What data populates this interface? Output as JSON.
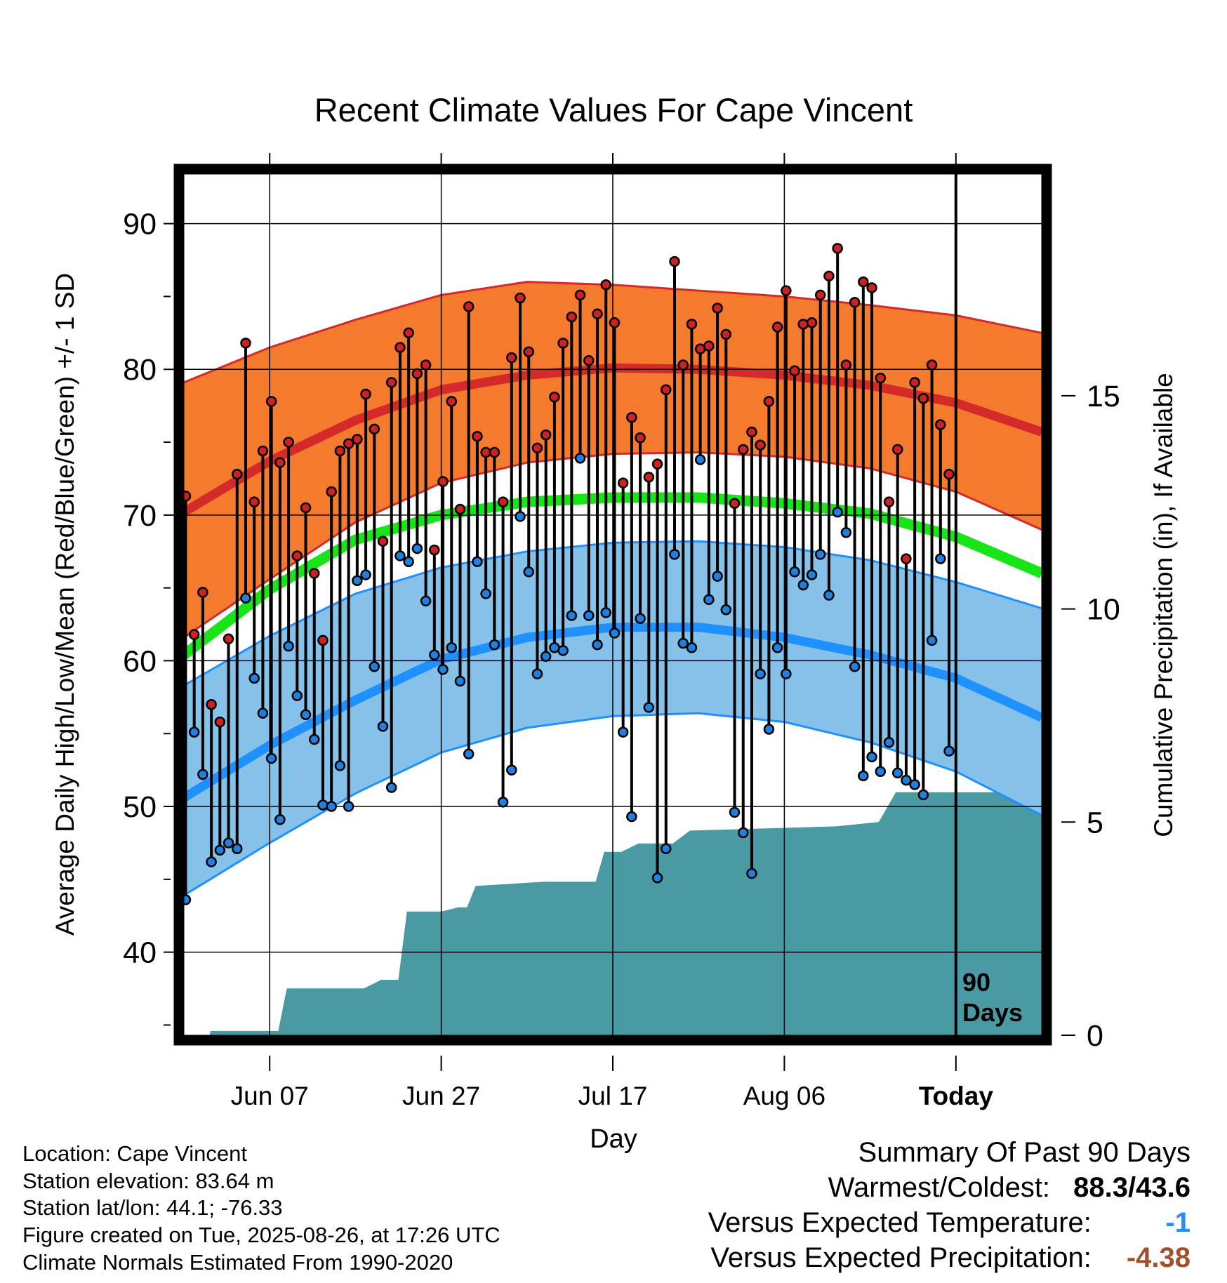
{
  "chart_data": {
    "type": "line",
    "title": "Recent Climate Values For Cape Vincent",
    "xlabel": "Day",
    "ylabel": "Average Daily High/Low/Mean (Red/Blue/Green) +/- 1 SD",
    "y2label": "Cumulative Precipitation (in), If Available",
    "ylim": [
      34.3,
      93.4
    ],
    "y2lim": [
      0,
      20.2
    ],
    "yticks": [
      40,
      50,
      60,
      70,
      80,
      90
    ],
    "y2ticks": [
      0,
      5,
      10,
      15
    ],
    "xticks": [
      {
        "day": 10,
        "label": "Jun 07"
      },
      {
        "day": 30,
        "label": "Jun 27"
      },
      {
        "day": 50,
        "label": "Jul 17"
      },
      {
        "day": 70,
        "label": "Aug 06"
      },
      {
        "day": 90,
        "label": "Today"
      }
    ],
    "grid": true,
    "window_label": "90 Days",
    "highs": [
      71.3,
      61.8,
      64.7,
      57.0,
      55.8,
      61.5,
      72.8,
      81.8,
      70.9,
      74.4,
      77.8,
      73.6,
      75.0,
      67.2,
      70.5,
      66.0,
      61.4,
      71.6,
      74.4,
      74.9,
      75.2,
      78.3,
      75.9,
      68.2,
      79.1,
      81.5,
      82.5,
      79.7,
      80.3,
      67.6,
      72.3,
      77.8,
      70.4,
      84.3,
      75.4,
      74.3,
      74.3,
      70.9,
      80.8,
      84.9,
      81.2,
      74.6,
      75.5,
      78.1,
      81.8,
      83.6,
      85.1,
      80.6,
      83.8,
      85.8,
      83.2,
      72.2,
      76.7,
      75.3,
      72.6,
      73.5,
      78.6,
      87.4,
      80.3,
      83.1,
      81.4,
      81.6,
      84.2,
      82.4,
      70.8,
      74.5,
      75.7,
      74.8,
      77.8,
      82.9,
      85.4,
      79.9,
      83.1,
      83.2,
      85.1,
      86.4,
      88.3,
      80.3,
      84.6,
      86.0,
      85.6,
      79.4,
      70.9,
      74.5,
      67.0,
      79.1,
      78.0,
      80.3,
      76.2,
      72.8
    ],
    "lows": [
      43.6,
      55.1,
      52.2,
      46.2,
      47.0,
      47.5,
      47.1,
      64.3,
      58.8,
      56.4,
      53.3,
      49.1,
      61.0,
      57.6,
      56.3,
      54.6,
      50.1,
      50.0,
      52.8,
      50.0,
      65.5,
      65.9,
      59.6,
      55.5,
      51.3,
      67.2,
      66.8,
      67.7,
      64.1,
      60.4,
      59.4,
      60.9,
      58.6,
      53.6,
      66.8,
      64.6,
      61.1,
      50.3,
      52.5,
      69.9,
      66.1,
      59.1,
      60.3,
      60.9,
      60.7,
      63.1,
      73.9,
      63.1,
      61.1,
      63.3,
      61.9,
      55.1,
      49.3,
      62.9,
      56.8,
      45.1,
      47.1,
      67.3,
      61.2,
      60.9,
      73.8,
      64.2,
      65.8,
      63.5,
      49.6,
      48.2,
      45.4,
      59.1,
      55.3,
      60.9,
      59.1,
      66.1,
      65.2,
      65.9,
      67.3,
      64.5,
      70.2,
      68.8,
      59.6,
      52.1,
      53.4,
      52.4,
      54.4,
      52.3,
      51.8,
      51.5,
      50.8,
      61.4,
      67.0,
      53.8
    ],
    "normals_mean_high": [
      {
        "day": 0,
        "value": 70.2
      },
      {
        "day": 10,
        "value": 73.7
      },
      {
        "day": 20,
        "value": 76.5
      },
      {
        "day": 30,
        "value": 78.6
      },
      {
        "day": 40,
        "value": 79.6
      },
      {
        "day": 50,
        "value": 80.1
      },
      {
        "day": 60,
        "value": 80.0
      },
      {
        "day": 70,
        "value": 79.6
      },
      {
        "day": 80,
        "value": 78.9
      },
      {
        "day": 90,
        "value": 77.7
      },
      {
        "day": 100,
        "value": 75.7
      }
    ],
    "normals_high_upper": [
      {
        "day": 0,
        "value": 79.1
      },
      {
        "day": 10,
        "value": 81.5
      },
      {
        "day": 20,
        "value": 83.4
      },
      {
        "day": 30,
        "value": 85.1
      },
      {
        "day": 40,
        "value": 86.0
      },
      {
        "day": 50,
        "value": 85.8
      },
      {
        "day": 60,
        "value": 85.4
      },
      {
        "day": 70,
        "value": 85.0
      },
      {
        "day": 80,
        "value": 84.4
      },
      {
        "day": 90,
        "value": 83.7
      },
      {
        "day": 100,
        "value": 82.5
      }
    ],
    "normals_high_lower": [
      {
        "day": 0,
        "value": 61.6
      },
      {
        "day": 10,
        "value": 65.6
      },
      {
        "day": 20,
        "value": 69.5
      },
      {
        "day": 30,
        "value": 72.2
      },
      {
        "day": 40,
        "value": 73.6
      },
      {
        "day": 50,
        "value": 74.2
      },
      {
        "day": 60,
        "value": 74.3
      },
      {
        "day": 70,
        "value": 74.0
      },
      {
        "day": 80,
        "value": 73.2
      },
      {
        "day": 90,
        "value": 71.6
      },
      {
        "day": 100,
        "value": 69.0
      }
    ],
    "normals_mean": [
      {
        "day": 0,
        "value": 60.4
      },
      {
        "day": 10,
        "value": 64.9
      },
      {
        "day": 20,
        "value": 68.3
      },
      {
        "day": 30,
        "value": 70.0
      },
      {
        "day": 40,
        "value": 70.9
      },
      {
        "day": 50,
        "value": 71.2
      },
      {
        "day": 60,
        "value": 71.2
      },
      {
        "day": 70,
        "value": 70.8
      },
      {
        "day": 80,
        "value": 70.1
      },
      {
        "day": 90,
        "value": 68.5
      },
      {
        "day": 100,
        "value": 66.0
      }
    ],
    "normals_mean_low": [
      {
        "day": 0,
        "value": 50.6
      },
      {
        "day": 10,
        "value": 54.2
      },
      {
        "day": 20,
        "value": 57.3
      },
      {
        "day": 30,
        "value": 60.1
      },
      {
        "day": 40,
        "value": 61.6
      },
      {
        "day": 50,
        "value": 62.3
      },
      {
        "day": 60,
        "value": 62.3
      },
      {
        "day": 70,
        "value": 61.6
      },
      {
        "day": 80,
        "value": 60.4
      },
      {
        "day": 90,
        "value": 58.8
      },
      {
        "day": 100,
        "value": 56.1
      }
    ],
    "normals_low_upper": [
      {
        "day": 0,
        "value": 58.3
      },
      {
        "day": 10,
        "value": 61.7
      },
      {
        "day": 20,
        "value": 64.6
      },
      {
        "day": 30,
        "value": 66.4
      },
      {
        "day": 40,
        "value": 67.5
      },
      {
        "day": 50,
        "value": 68.1
      },
      {
        "day": 60,
        "value": 68.2
      },
      {
        "day": 70,
        "value": 67.8
      },
      {
        "day": 80,
        "value": 66.9
      },
      {
        "day": 90,
        "value": 65.4
      },
      {
        "day": 100,
        "value": 63.6
      }
    ],
    "normals_low_lower": [
      {
        "day": 0,
        "value": 43.9
      },
      {
        "day": 10,
        "value": 47.5
      },
      {
        "day": 20,
        "value": 50.9
      },
      {
        "day": 30,
        "value": 53.7
      },
      {
        "day": 40,
        "value": 55.4
      },
      {
        "day": 50,
        "value": 56.2
      },
      {
        "day": 60,
        "value": 56.4
      },
      {
        "day": 70,
        "value": 55.8
      },
      {
        "day": 80,
        "value": 54.4
      },
      {
        "day": 90,
        "value": 52.4
      },
      {
        "day": 100,
        "value": 49.4
      }
    ],
    "precip_cumulative": [
      {
        "day": 0,
        "value": 0.0
      },
      {
        "day": 3,
        "value": 0.0
      },
      {
        "day": 3.1,
        "value": 0.1
      },
      {
        "day": 11,
        "value": 0.1
      },
      {
        "day": 12,
        "value": 1.1
      },
      {
        "day": 21,
        "value": 1.1
      },
      {
        "day": 23,
        "value": 1.3
      },
      {
        "day": 25,
        "value": 1.3
      },
      {
        "day": 26,
        "value": 2.9
      },
      {
        "day": 30,
        "value": 2.9
      },
      {
        "day": 32,
        "value": 3.0
      },
      {
        "day": 33,
        "value": 3.0
      },
      {
        "day": 34,
        "value": 3.5
      },
      {
        "day": 42,
        "value": 3.6
      },
      {
        "day": 48,
        "value": 3.6
      },
      {
        "day": 49,
        "value": 4.3
      },
      {
        "day": 51,
        "value": 4.3
      },
      {
        "day": 53,
        "value": 4.5
      },
      {
        "day": 57,
        "value": 4.5
      },
      {
        "day": 59,
        "value": 4.8
      },
      {
        "day": 76,
        "value": 4.9
      },
      {
        "day": 81,
        "value": 5.0
      },
      {
        "day": 83,
        "value": 5.7
      },
      {
        "day": 100,
        "value": 5.7
      }
    ]
  },
  "info": {
    "location": "Location: Cape Vincent",
    "elevation": "Station elevation: 83.64 m",
    "latlon": "Station lat/lon: 44.1; -76.33",
    "created": "Figure created on Tue, 2025-08-26, at 17:26 UTC",
    "normals": "Climate Normals Estimated From 1990-2020"
  },
  "summary": {
    "heading": "Summary Of Past 90 Days",
    "warm_cold_label": "Warmest/Coldest:",
    "warm_cold_value": "88.3/43.6",
    "temp_label": "Versus Expected Temperature:",
    "temp_value": "-1",
    "temp_color": "#1e90ff",
    "precip_label": "Versus Expected Precipitation:",
    "precip_value": "-4.38",
    "precip_color": "#a0522d"
  },
  "colors": {
    "high_band": "#f47a2e",
    "high_edge": "#d42a2a",
    "high_mean": "#d42a2a",
    "mean": "#18e418",
    "low_band": "#85c1e9",
    "low_edge": "#1e90ff",
    "low_mean": "#1e90ff",
    "precip": "#4a9aa4",
    "high_dot": "#cc2222",
    "low_dot": "#2080e0"
  }
}
